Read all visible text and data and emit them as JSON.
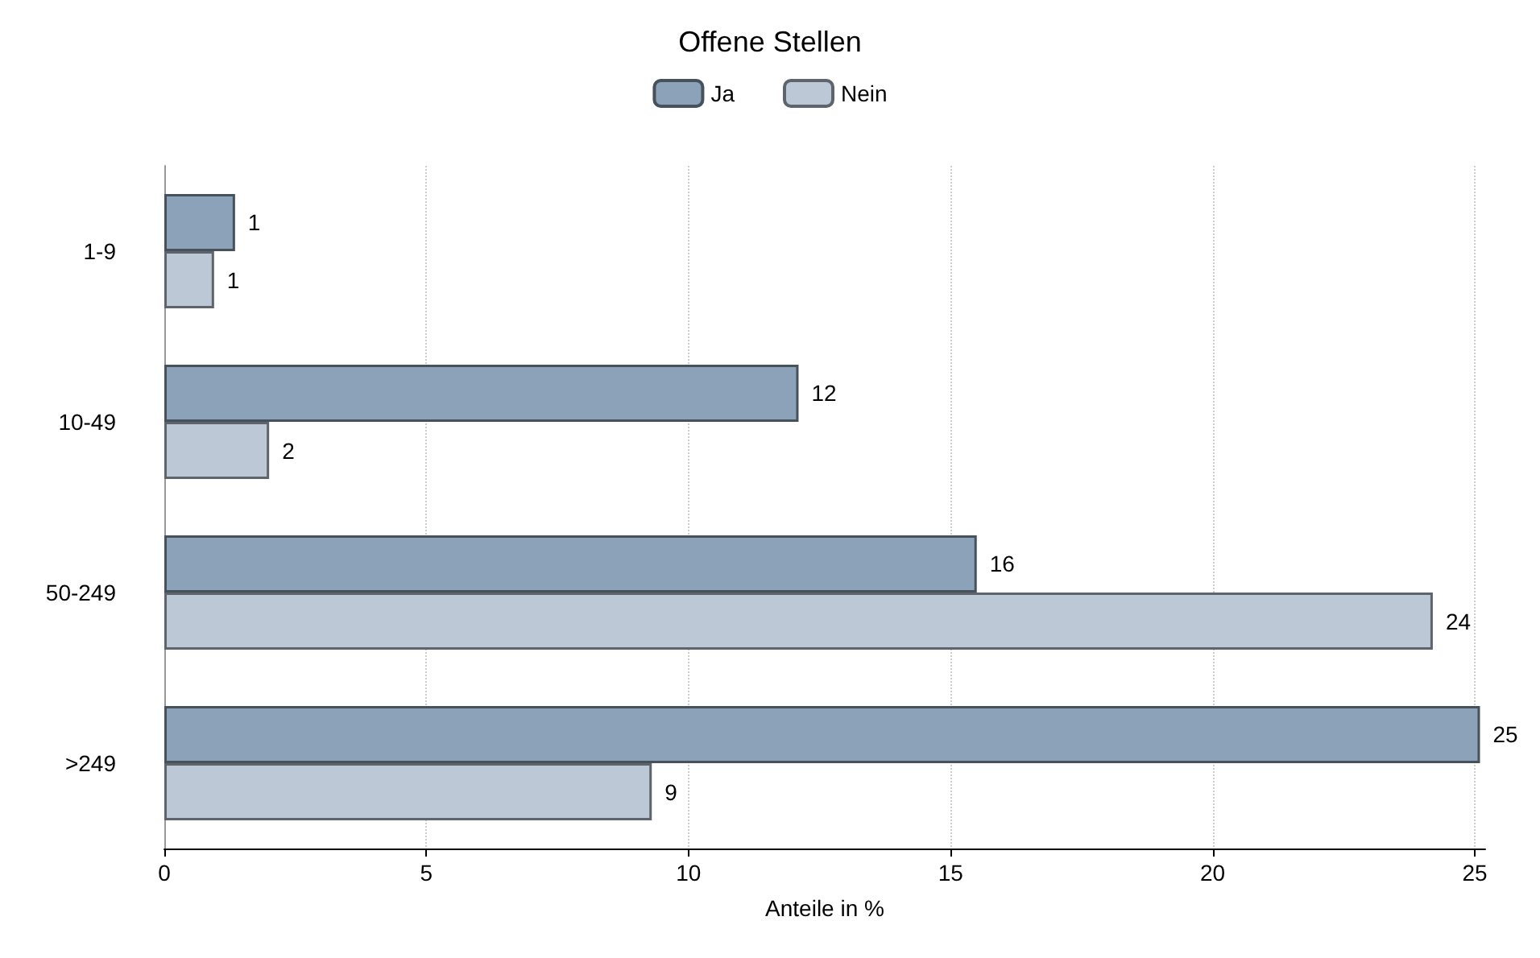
{
  "chart_data": {
    "type": "bar",
    "orientation": "horizontal",
    "legend_title": "Offene Stellen",
    "xlabel": "Anteile in %",
    "categories": [
      "1-9",
      "10-49",
      "50-249",
      ">249"
    ],
    "series": [
      {
        "name": "Ja",
        "color": "#8ca2b8",
        "values": [
          1.35,
          12.1,
          15.5,
          25.1
        ],
        "value_labels": [
          "1",
          "12",
          "16",
          "25"
        ]
      },
      {
        "name": "Nein",
        "color": "#bcc8d5",
        "values": [
          0.95,
          2.0,
          24.2,
          9.3
        ],
        "value_labels": [
          "1",
          "2",
          "24",
          "9"
        ]
      }
    ],
    "xlim": [
      0,
      25.2
    ],
    "xticks": [
      0,
      5,
      10,
      15,
      20,
      25
    ],
    "grid": "x",
    "legend": "top"
  }
}
